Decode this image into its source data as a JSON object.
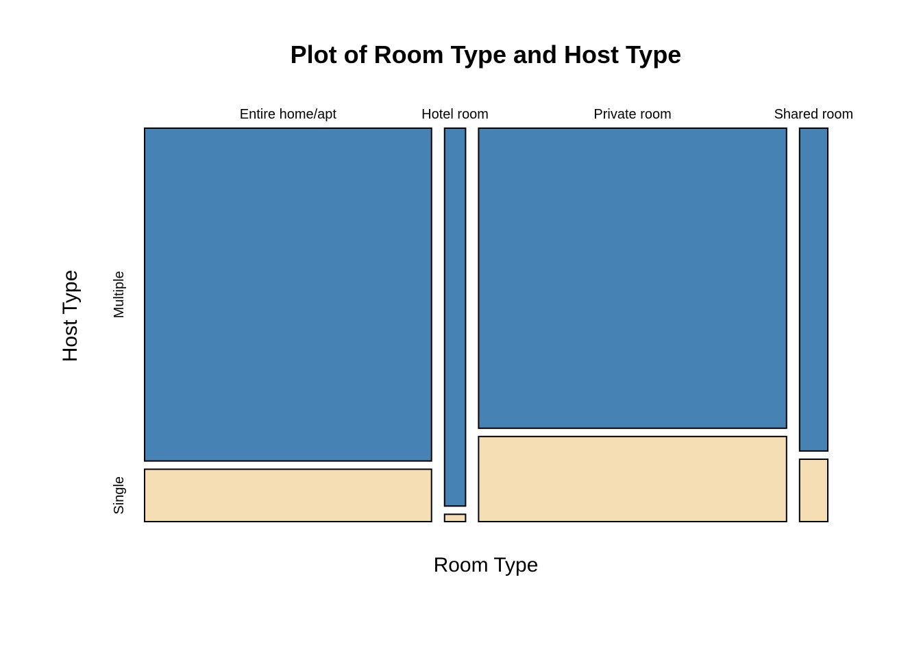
{
  "chart_data": {
    "type": "mosaic",
    "title": "Plot of Room Type and Host Type",
    "xlabel": "Room Type",
    "ylabel": "Host Type",
    "categories": [
      "Entire home/apt",
      "Hotel room",
      "Private room",
      "Shared room"
    ],
    "column_share": [
      0.437,
      0.032,
      0.469,
      0.043
    ],
    "host_levels": [
      "Single",
      "Multiple"
    ],
    "series": [
      {
        "name": "Single",
        "color": "#F5DEB3",
        "values": [
          0.136,
          0.019,
          0.221,
          0.162
        ]
      },
      {
        "name": "Multiple",
        "color": "#4682B4",
        "values": [
          0.864,
          0.981,
          0.779,
          0.838
        ]
      }
    ]
  }
}
